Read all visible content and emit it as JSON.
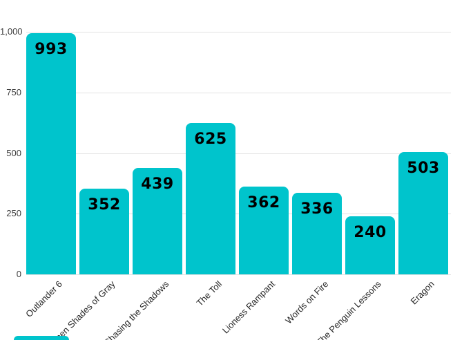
{
  "chart_data": {
    "type": "bar",
    "title": "",
    "xlabel": "",
    "ylabel": "",
    "categories": [
      "Outlander 6",
      "Between Shades of Gray",
      "Chasing the Shadows",
      "The Toll",
      "Lioness Rampant",
      "Words on Fire",
      "The Penguin Lessons",
      "Eragon"
    ],
    "values": [
      993,
      352,
      439,
      625,
      362,
      336,
      240,
      503
    ],
    "data_labels": [
      "993",
      "352",
      "439",
      "625",
      "362",
      "336",
      "240",
      "503"
    ],
    "ylim": [
      0,
      1000
    ],
    "yticks": [
      0,
      250,
      500,
      750,
      1000
    ],
    "ytick_labels": [
      "0",
      "250",
      "500",
      "750",
      "1,000"
    ],
    "grid": true,
    "legend": false,
    "x_label_rotation_deg": -45,
    "colors": {
      "bar": "#00c4cc",
      "value_label": "#000000",
      "y_axis_label": "#3d3d3d",
      "x_axis_label": "#262626",
      "gridline": "#e2e2e2",
      "background": "#ffffff"
    }
  },
  "decorations": {
    "bottom_left_fragment": "partial teal element cropped at bottom edge"
  }
}
